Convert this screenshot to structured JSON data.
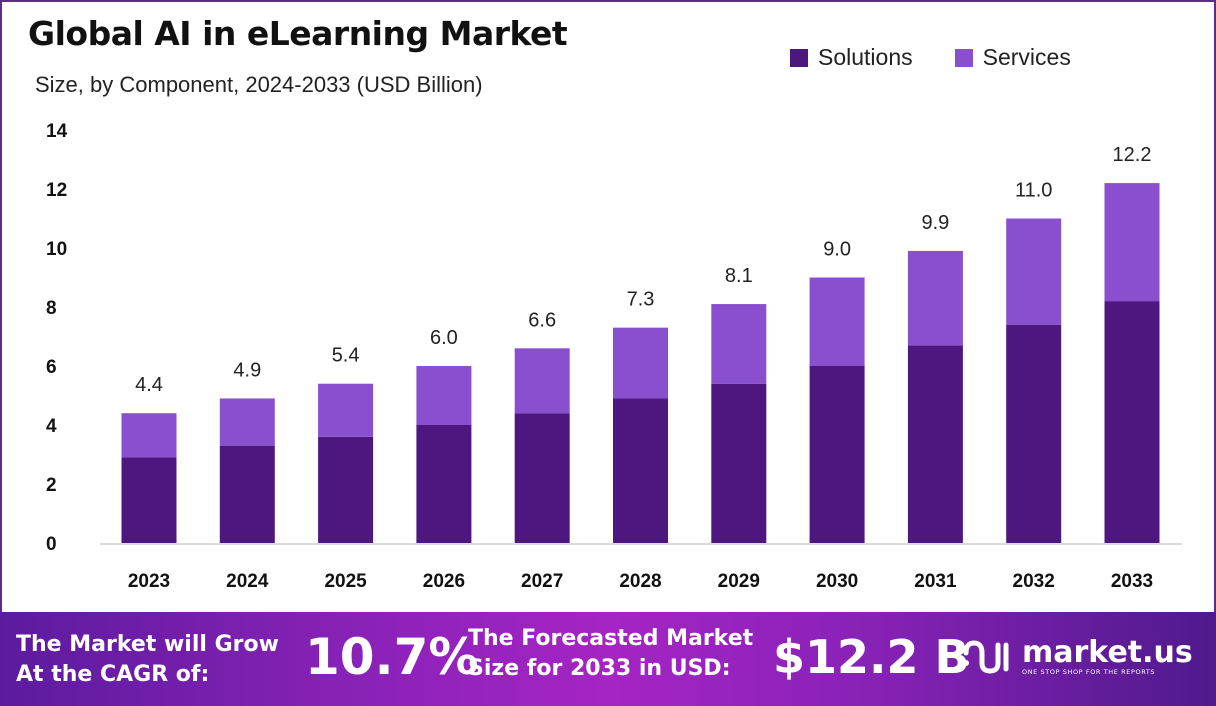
{
  "chart_data": {
    "type": "bar",
    "stacked": true,
    "title": "Global AI in eLearning Market",
    "subtitle": "Size, by Component, 2024-2033 (USD Billion)",
    "categories": [
      "2023",
      "2024",
      "2025",
      "2026",
      "2027",
      "2028",
      "2029",
      "2030",
      "2031",
      "2032",
      "2033"
    ],
    "series": [
      {
        "name": "Solutions",
        "color": "#4e1780",
        "values": [
          2.9,
          3.3,
          3.6,
          4.0,
          4.4,
          4.9,
          5.4,
          6.0,
          6.7,
          7.4,
          8.2
        ]
      },
      {
        "name": "Services",
        "color": "#8a4fcf",
        "values": [
          1.5,
          1.6,
          1.8,
          2.0,
          2.2,
          2.4,
          2.7,
          3.0,
          3.2,
          3.6,
          4.0
        ]
      }
    ],
    "totals": [
      "4.4",
      "4.9",
      "5.4",
      "6.0",
      "6.6",
      "7.3",
      "8.1",
      "9.0",
      "9.9",
      "11.0",
      "12.2"
    ],
    "ylim": [
      0,
      14
    ],
    "yticks": [
      "0",
      "2",
      "4",
      "6",
      "8",
      "10",
      "12",
      "14"
    ],
    "grid": false,
    "legend_position": "top-right"
  },
  "footer": {
    "cagr_label_line1": "The Market will Grow",
    "cagr_label_line2": "At the CAGR of:",
    "cagr_value": "10.7%",
    "forecast_label_line1": "The Forecasted Market",
    "forecast_label_line2": "Size for 2033 in USD:",
    "forecast_value": "$12.2 B",
    "brand": "market.us",
    "brand_tagline": "ONE STOP SHOP FOR THE REPORTS"
  }
}
